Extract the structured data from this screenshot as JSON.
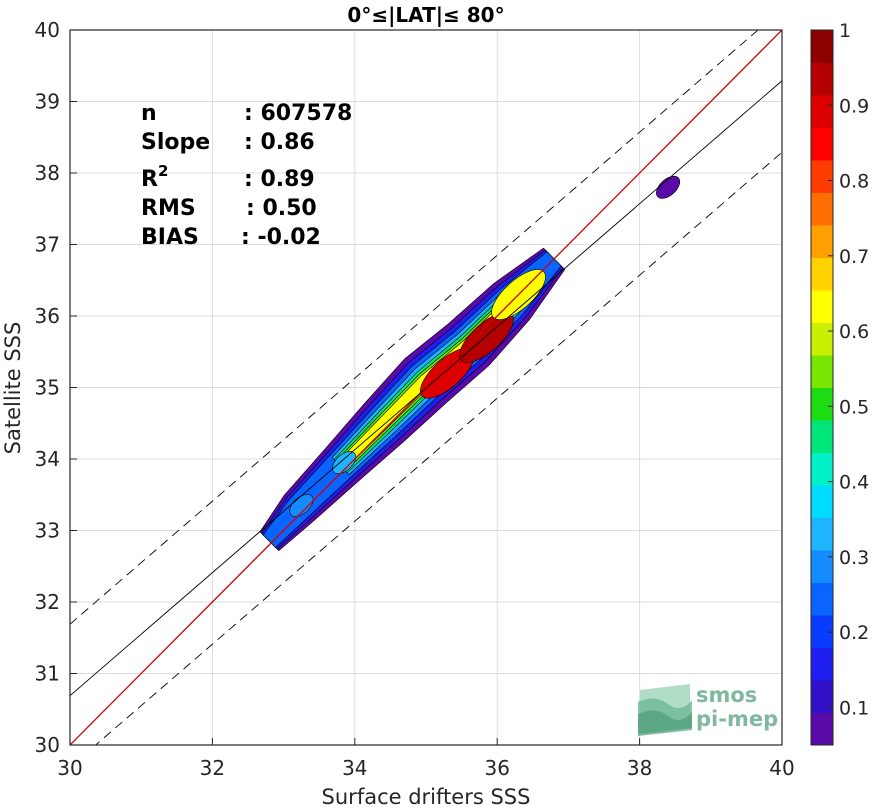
{
  "chart_data": {
    "type": "heatmap",
    "title": "0°≤|LAT|≤ 80°",
    "xlabel": "Surface drifters SSS",
    "ylabel": "Satellite SSS",
    "xlim": [
      30,
      40
    ],
    "ylim": [
      30,
      40
    ],
    "xticks": [
      "30",
      "32",
      "34",
      "36",
      "38",
      "40"
    ],
    "yticks": [
      "30",
      "31",
      "32",
      "33",
      "34",
      "35",
      "36",
      "37",
      "38",
      "39",
      "40"
    ],
    "grid": true,
    "stats": {
      "n": {
        "label": "n",
        "value": ": 607578"
      },
      "slope": {
        "label": "Slope",
        "value": ": 0.86"
      },
      "r2": {
        "label": "R",
        "sup": "2",
        "value": ": 0.89"
      },
      "rms": {
        "label": "RMS",
        "value": ": 0.50"
      },
      "bias": {
        "label": "BIAS",
        "value": ": -0.02"
      }
    },
    "lines": [
      {
        "name": "identity",
        "slope": 1.0,
        "intercept": 0.0,
        "style": "solid",
        "color": "#cc0000"
      },
      {
        "name": "fit",
        "slope": 0.86,
        "intercept": 4.89,
        "style": "solid",
        "color": "#000000"
      },
      {
        "name": "fit-plus-2rms",
        "slope": 0.86,
        "intercept": 5.89,
        "style": "dashed",
        "color": "#000000"
      },
      {
        "name": "fit-minus-2rms",
        "slope": 0.86,
        "intercept": 3.89,
        "style": "dashed",
        "color": "#000000"
      }
    ],
    "density_ridge": [
      {
        "x": 32.8,
        "y": 32.85,
        "w": 0.22
      },
      {
        "x": 33.2,
        "y": 33.3,
        "w": 0.32
      },
      {
        "x": 33.8,
        "y": 33.9,
        "w": 0.38
      },
      {
        "x": 34.4,
        "y": 34.5,
        "w": 0.45
      },
      {
        "x": 35.0,
        "y": 35.1,
        "w": 0.5
      },
      {
        "x": 35.6,
        "y": 35.6,
        "w": 0.48
      },
      {
        "x": 36.2,
        "y": 36.2,
        "w": 0.42
      },
      {
        "x": 36.8,
        "y": 36.8,
        "w": 0.25
      }
    ],
    "density_peaks": [
      {
        "x": 35.3,
        "y": 35.2,
        "level": 0.9
      },
      {
        "x": 35.85,
        "y": 35.7,
        "level": 0.95
      },
      {
        "x": 36.3,
        "y": 36.3,
        "level": 0.65
      },
      {
        "x": 33.85,
        "y": 33.95,
        "level": 0.35
      },
      {
        "x": 33.25,
        "y": 33.35,
        "level": 0.3
      },
      {
        "x": 38.4,
        "y": 37.8,
        "level": 0.08
      }
    ],
    "colorbar": {
      "min": 0.05,
      "max": 1,
      "ticks": [
        "0.1",
        "0.2",
        "0.3",
        "0.4",
        "0.5",
        "0.6",
        "0.7",
        "0.8",
        "0.9",
        "1"
      ],
      "colors": [
        "#5a0aa8",
        "#3210c8",
        "#1e1ef0",
        "#0a3cff",
        "#0a64ff",
        "#148cff",
        "#1eb4ff",
        "#00dcff",
        "#00f0c8",
        "#00e678",
        "#1edc14",
        "#78e600",
        "#c8f000",
        "#ffff00",
        "#ffd200",
        "#ffa000",
        "#ff6e00",
        "#ff3c00",
        "#ff0000",
        "#dc0000",
        "#b40000",
        "#8c0000"
      ]
    }
  },
  "logo": {
    "line1": "smos",
    "line2": "pi-mep"
  }
}
